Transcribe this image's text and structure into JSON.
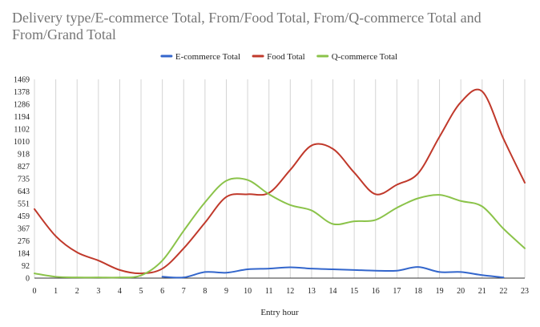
{
  "chart_data": {
    "type": "line",
    "title_lines": [
      "Delivery type/E-commerce Total, From/Food Total, From/Q-commerce Total and",
      "From/Grand Total"
    ],
    "xlabel": "Entry hour",
    "ylabel": "",
    "categories": [
      "0",
      "1",
      "2",
      "3",
      "4",
      "5",
      "6",
      "7",
      "8",
      "9",
      "10",
      "11",
      "12",
      "13",
      "14",
      "15",
      "16",
      "17",
      "18",
      "19",
      "20",
      "21",
      "22",
      "23"
    ],
    "y_ticks": [
      0,
      92,
      184,
      276,
      367,
      459,
      551,
      643,
      735,
      827,
      918,
      1010,
      1102,
      1194,
      1286,
      1378,
      1469
    ],
    "y_tick_labels": [
      "0",
      "92",
      "184",
      "276",
      "367",
      "459",
      "551",
      "643",
      "735",
      "827",
      "918",
      "1010",
      "1102",
      "1194",
      "1286",
      "1378",
      "1469"
    ],
    "ylim": [
      0,
      1469
    ],
    "grid": "vertical",
    "legend_position": "top-center",
    "series": [
      {
        "name": "E-commerce Total",
        "color": "#3366cc",
        "x": [
          6,
          7,
          8,
          9,
          10,
          11,
          12,
          13,
          14,
          15,
          16,
          17,
          18,
          19,
          20,
          21,
          22
        ],
        "values": [
          10,
          5,
          45,
          40,
          65,
          70,
          80,
          70,
          65,
          60,
          55,
          55,
          82,
          45,
          45,
          22,
          5
        ]
      },
      {
        "name": "Food Total",
        "color": "#c0392b",
        "x": [
          0,
          1,
          2,
          3,
          4,
          5,
          6,
          7,
          8,
          9,
          10,
          11,
          12,
          13,
          14,
          15,
          16,
          17,
          18,
          19,
          20,
          21,
          22,
          23
        ],
        "values": [
          510,
          310,
          190,
          130,
          60,
          35,
          70,
          220,
          410,
          600,
          620,
          630,
          800,
          980,
          955,
          780,
          620,
          690,
          775,
          1045,
          1300,
          1380,
          1030,
          705
        ]
      },
      {
        "name": "Q-commerce Total",
        "color": "#8bc34a",
        "x": [
          0,
          1,
          2,
          3,
          4,
          5,
          6,
          7,
          8,
          9,
          10,
          11,
          12,
          13,
          14,
          15,
          16,
          17,
          18,
          19,
          20,
          21,
          22,
          23
        ],
        "values": [
          35,
          10,
          5,
          5,
          5,
          20,
          130,
          350,
          560,
          720,
          725,
          620,
          540,
          500,
          400,
          420,
          430,
          520,
          590,
          615,
          570,
          530,
          365,
          220
        ]
      }
    ]
  }
}
